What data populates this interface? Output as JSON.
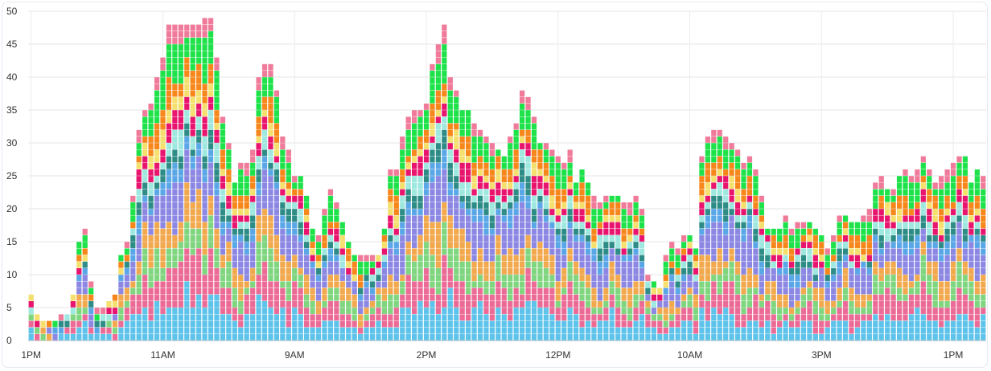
{
  "chart_data": {
    "type": "bar",
    "stacked": true,
    "grid": true,
    "ylim": [
      0,
      50
    ],
    "y_ticks": [
      "0",
      "5",
      "10",
      "15",
      "20",
      "25",
      "30",
      "35",
      "40",
      "45",
      "50"
    ],
    "x_ticks": [
      {
        "index": 0,
        "label": "1PM"
      },
      {
        "index": 22,
        "label": "11AM"
      },
      {
        "index": 44,
        "label": "9AM"
      },
      {
        "index": 66,
        "label": "2PM"
      },
      {
        "index": 88,
        "label": "12PM"
      },
      {
        "index": 110,
        "label": "10AM"
      },
      {
        "index": 132,
        "label": "3PM"
      },
      {
        "index": 154,
        "label": "1PM"
      },
      {
        "index": 176,
        "label": "11AM"
      }
    ],
    "totals": [
      7,
      4,
      3,
      3,
      3,
      4,
      4,
      7,
      15,
      17,
      9,
      5,
      5,
      6,
      7,
      13,
      15,
      22,
      32,
      35,
      36,
      40,
      43,
      48,
      48,
      48,
      48,
      48,
      48,
      49,
      49,
      43,
      34,
      30,
      24,
      27,
      27,
      29,
      40,
      42,
      42,
      38,
      31,
      29,
      25,
      25,
      22,
      17,
      16,
      20,
      23,
      21,
      18,
      15,
      13,
      13,
      13,
      13,
      13,
      17,
      26,
      26,
      31,
      34,
      35,
      35,
      36,
      42,
      45,
      48,
      40,
      38,
      35,
      35,
      33,
      32,
      31,
      30,
      29,
      28,
      31,
      33,
      38,
      37,
      34,
      30,
      30,
      29,
      28,
      27,
      29,
      24,
      26,
      24,
      22,
      21,
      22,
      22,
      22,
      21,
      21,
      22,
      20,
      10,
      9,
      8,
      13,
      15,
      14,
      16,
      16,
      14,
      28,
      31,
      32,
      32,
      31,
      30,
      29,
      27,
      28,
      26,
      22,
      17,
      17,
      17,
      19,
      17,
      18,
      18,
      18,
      17,
      16,
      14,
      16,
      19,
      19,
      18,
      18,
      19,
      20,
      24,
      25,
      23,
      23,
      25,
      26,
      25,
      26,
      28,
      26,
      24,
      25,
      26,
      27,
      28,
      28,
      24,
      26,
      25
    ],
    "series": [
      {
        "color": "#5ec3ea"
      },
      {
        "color": "#ec6b96"
      },
      {
        "color": "#7fd67f"
      },
      {
        "color": "#f2a94e"
      },
      {
        "color": "#8b87e3"
      },
      {
        "color": "#5aa7e8"
      },
      {
        "color": "#2d8c86"
      },
      {
        "color": "#9ee8e0"
      },
      {
        "color": "#e8146e"
      },
      {
        "color": "#f5e06e"
      },
      {
        "color": "#f7871a"
      },
      {
        "color": "#1ee24a"
      },
      {
        "color": "#f07a99"
      }
    ]
  }
}
